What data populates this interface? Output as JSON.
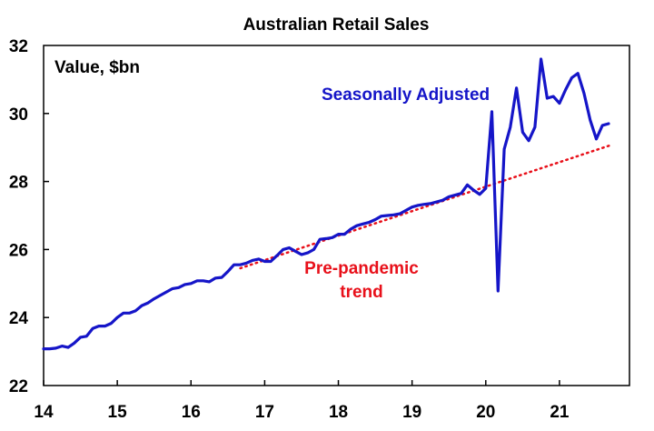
{
  "chart_data": {
    "type": "line",
    "title": "Australian Retail Sales",
    "unit_label": "Value, $bn",
    "xlabel": "",
    "ylabel": "",
    "xlim": [
      2014.0,
      2021.95
    ],
    "ylim": [
      22,
      32
    ],
    "x_ticks": [
      {
        "value": 2014,
        "label": "14"
      },
      {
        "value": 2015,
        "label": "15"
      },
      {
        "value": 2016,
        "label": "16"
      },
      {
        "value": 2017,
        "label": "17"
      },
      {
        "value": 2018,
        "label": "18"
      },
      {
        "value": 2019,
        "label": "19"
      },
      {
        "value": 2020,
        "label": "20"
      },
      {
        "value": 2021,
        "label": "21"
      }
    ],
    "y_ticks": [
      {
        "value": 22,
        "label": "22"
      },
      {
        "value": 24,
        "label": "24"
      },
      {
        "value": 26,
        "label": "26"
      },
      {
        "value": 28,
        "label": "28"
      },
      {
        "value": 30,
        "label": "30"
      },
      {
        "value": 32,
        "label": "32"
      }
    ],
    "grid": false,
    "legend": "none",
    "series": [
      {
        "name": "Seasonally Adjusted",
        "color": "#1515c8",
        "style": "solid",
        "x": [
          2014.0,
          2014.083,
          2014.167,
          2014.25,
          2014.333,
          2014.417,
          2014.5,
          2014.583,
          2014.667,
          2014.75,
          2014.833,
          2014.917,
          2015.0,
          2015.083,
          2015.167,
          2015.25,
          2015.333,
          2015.417,
          2015.5,
          2015.583,
          2015.667,
          2015.75,
          2015.833,
          2015.917,
          2016.0,
          2016.083,
          2016.167,
          2016.25,
          2016.333,
          2016.417,
          2016.5,
          2016.583,
          2016.667,
          2016.75,
          2016.833,
          2016.917,
          2017.0,
          2017.083,
          2017.167,
          2017.25,
          2017.333,
          2017.417,
          2017.5,
          2017.583,
          2017.667,
          2017.75,
          2017.833,
          2017.917,
          2018.0,
          2018.083,
          2018.167,
          2018.25,
          2018.333,
          2018.417,
          2018.5,
          2018.583,
          2018.667,
          2018.75,
          2018.833,
          2018.917,
          2019.0,
          2019.083,
          2019.167,
          2019.25,
          2019.333,
          2019.417,
          2019.5,
          2019.583,
          2019.667,
          2019.75,
          2019.833,
          2019.917,
          2020.0,
          2020.083,
          2020.167,
          2020.25,
          2020.333,
          2020.417,
          2020.5,
          2020.583,
          2020.667,
          2020.75,
          2020.833,
          2020.917,
          2021.0,
          2021.083,
          2021.167,
          2021.25,
          2021.333,
          2021.417,
          2021.5,
          2021.583,
          2021.667
        ],
        "values": [
          23.08,
          23.08,
          23.1,
          23.16,
          23.12,
          23.25,
          23.42,
          23.45,
          23.68,
          23.75,
          23.75,
          23.83,
          24.0,
          24.13,
          24.13,
          24.2,
          24.35,
          24.43,
          24.55,
          24.65,
          24.75,
          24.85,
          24.88,
          24.97,
          25.0,
          25.08,
          25.08,
          25.05,
          25.16,
          25.18,
          25.35,
          25.55,
          25.55,
          25.6,
          25.68,
          25.72,
          25.65,
          25.65,
          25.82,
          26.0,
          26.05,
          25.95,
          25.85,
          25.9,
          26.0,
          26.3,
          26.32,
          26.35,
          26.45,
          26.45,
          26.6,
          26.7,
          26.75,
          26.8,
          26.88,
          26.98,
          27.0,
          27.02,
          27.05,
          27.15,
          27.25,
          27.3,
          27.33,
          27.35,
          27.4,
          27.45,
          27.55,
          27.6,
          27.65,
          27.9,
          27.75,
          27.62,
          27.8,
          30.05,
          24.78,
          28.95,
          29.6,
          30.75,
          29.45,
          29.2,
          29.6,
          31.6,
          30.45,
          30.5,
          30.3,
          30.7,
          31.05,
          31.18,
          30.6,
          29.8,
          29.25,
          29.65,
          29.7
        ]
      },
      {
        "name": "Pre-pandemic trend",
        "color": "#e8101a",
        "style": "dotted",
        "x": [
          2016.67,
          2021.67
        ],
        "values": [
          25.45,
          29.05
        ]
      }
    ],
    "annotations": [
      {
        "text": "Seasonally Adjusted",
        "color": "#1515c8"
      },
      {
        "lines": [
          "Pre-pandemic",
          "trend"
        ],
        "color": "#e8101a"
      }
    ]
  }
}
